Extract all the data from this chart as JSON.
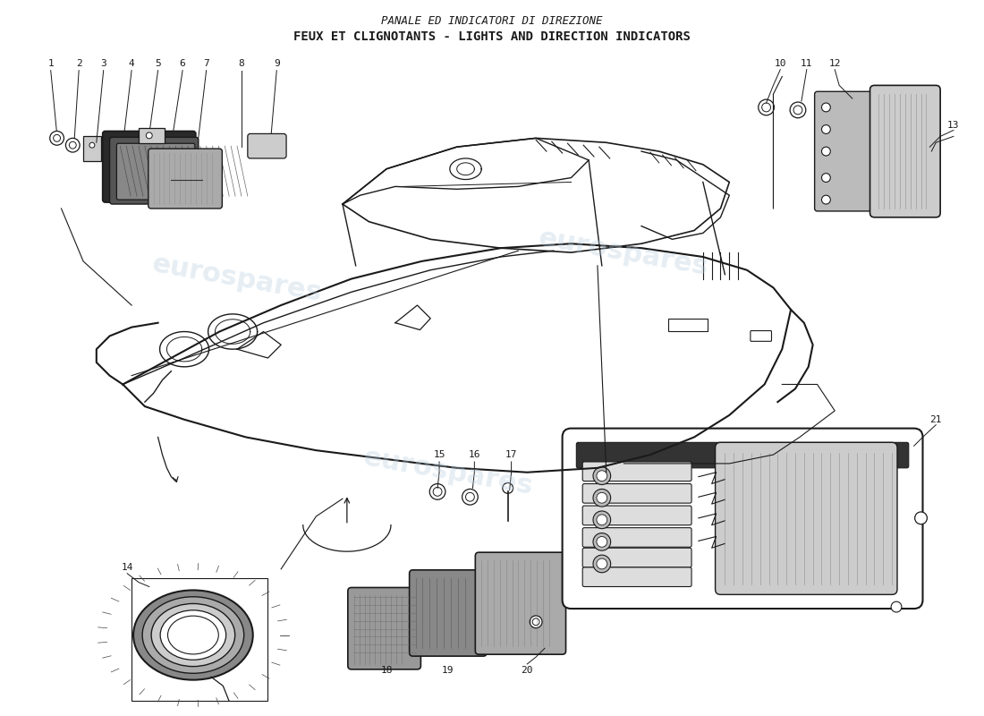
{
  "title_line1": "PANALE ED INDICATORI DI DIREZIONE",
  "title_line2": "FEUX ET CLIGNOTANTS - LIGHTS AND DIRECTION INDICATORS",
  "background_color": "#ffffff",
  "watermark_text": "eurospares",
  "watermark_color": "#b8cfe0",
  "watermark_alpha": 0.35,
  "line_color": "#1a1a1a",
  "text_color": "#1a1a1a",
  "font_size_title1": 9,
  "font_size_title2": 10,
  "font_size_labels": 8,
  "part_numbers_top_left": [
    "1",
    "2",
    "3",
    "4",
    "5",
    "6",
    "7",
    "8",
    "9"
  ],
  "part_numbers_top_right": [
    "10",
    "11",
    "12",
    "13"
  ],
  "part_label_14": "14",
  "part_numbers_bottom": [
    "15",
    "16",
    "17",
    "18",
    "19",
    "20",
    "21"
  ]
}
